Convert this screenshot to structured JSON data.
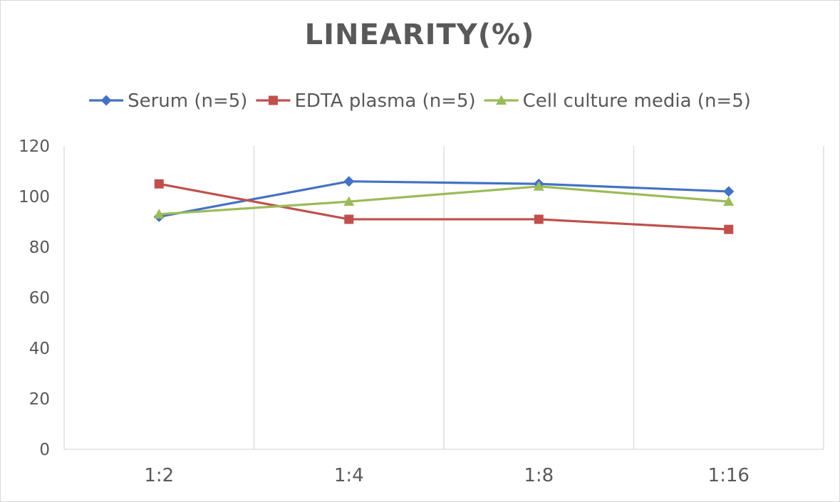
{
  "chart_data": {
    "type": "line",
    "title": "LINEARITY(%)",
    "xlabel": "",
    "ylabel": "",
    "categories": [
      "1:2",
      "1:4",
      "1:8",
      "1:16"
    ],
    "ylim": [
      0,
      120
    ],
    "yticks": [
      0,
      20,
      40,
      60,
      80,
      100,
      120
    ],
    "grid": "vertical",
    "legend": "top",
    "series": [
      {
        "name": "Serum (n=5)",
        "values": [
          92,
          106,
          105,
          102
        ],
        "color": "#4472c4",
        "marker": "diamond"
      },
      {
        "name": "EDTA plasma (n=5)",
        "values": [
          105,
          91,
          91,
          87
        ],
        "color": "#c0504d",
        "marker": "square"
      },
      {
        "name": "Cell culture media (n=5)",
        "values": [
          93,
          98,
          104,
          98
        ],
        "color": "#9bbb59",
        "marker": "triangle"
      }
    ]
  }
}
